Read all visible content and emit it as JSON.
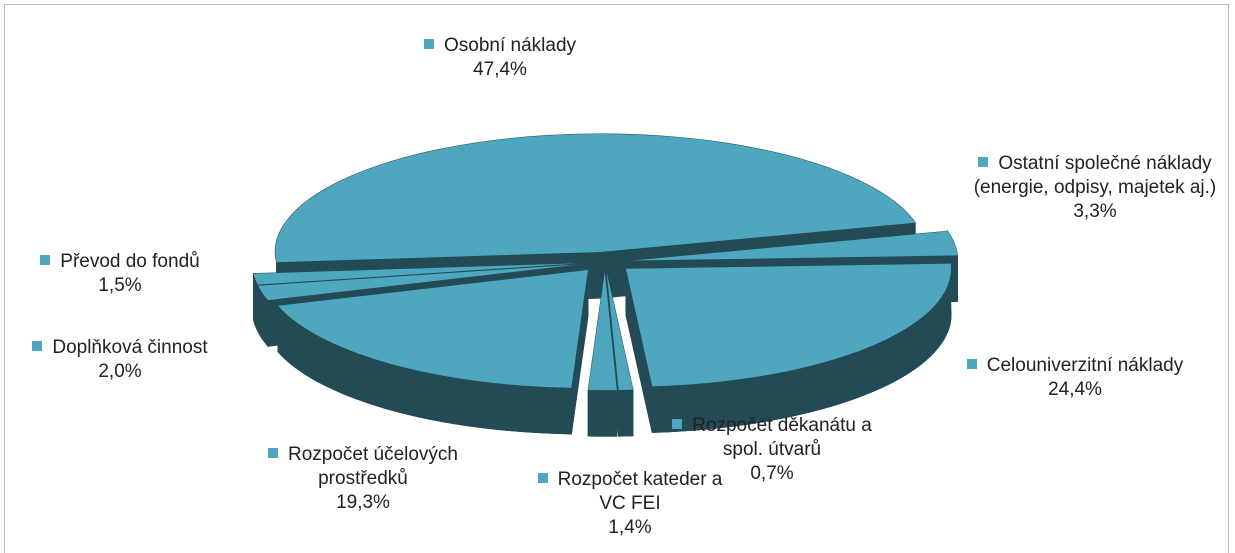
{
  "chart_data": {
    "type": "pie3d",
    "categories": [
      "Osobní náklady",
      "Ostatní společné náklady (energie, odpisy, majetek aj.)",
      "Celouniverzitní náklady",
      "Rozpočet děkanátu a spol. útvarů",
      "Rozpočet kateder a VC FEI",
      "Rozpočet účelových prostředků",
      "Doplňková činnost",
      "Převod do fondů"
    ],
    "values": [
      47.4,
      3.3,
      24.4,
      0.7,
      1.4,
      19.3,
      2.0,
      1.5
    ],
    "value_labels": [
      "47,4%",
      "3,3%",
      "24,4%",
      "0,7%",
      "1,4%",
      "19,3%",
      "2,0%",
      "1,5%"
    ],
    "color": "#4fa7bf",
    "side_color": "#234b56"
  }
}
